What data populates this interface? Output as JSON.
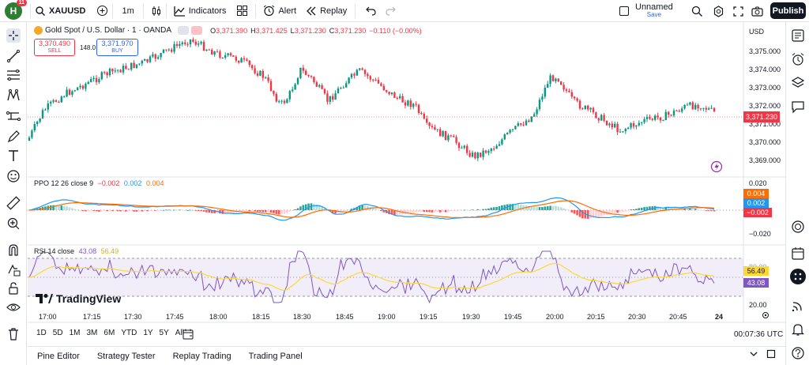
{
  "top": {
    "avatar_letter": "H",
    "badge": "11",
    "symbol": "XAUUSD",
    "interval": "1m",
    "indicators": "Indicators",
    "alert": "Alert",
    "replay": "Replay",
    "layout_name": "Unnamed",
    "layout_status": "Save",
    "publish": "Publish"
  },
  "legend": {
    "title": "Gold Spot / U.S. Dollar · 1 · OANDA",
    "o": "O",
    "o_val": "3,371.390",
    "h": "H",
    "h_val": "3,371.425",
    "l": "L",
    "l_val": "3,371.230",
    "c": "C",
    "c_val": "3,371.230",
    "chg": "−0.110 (−0.00%)"
  },
  "trade": {
    "sell_price": "3,370.490",
    "sell": "SELL",
    "spread": "148.0",
    "buy_price": "3,371.970",
    "buy": "BUY"
  },
  "ppo": {
    "name": "PPO",
    "params": "12 26 close 9",
    "v1": "−0.002",
    "v2": "0.002",
    "v3": "0.004"
  },
  "rsi": {
    "name": "RSI",
    "params": "14 close",
    "v1": "43.08",
    "v2": "56.49"
  },
  "price_axis": {
    "currency": "USD",
    "labels": [
      "3,375.000",
      "3,374.000",
      "3,373.000",
      "3,372.000",
      "3,371.000",
      "3,370.000",
      "3,369.000"
    ],
    "last": "3,371.230"
  },
  "ppo_axis": {
    "top": "0.020",
    "bottom": "−0.020",
    "badges": [
      "0.004",
      "0.002",
      "−0.002"
    ]
  },
  "rsi_axis": {
    "labels": [
      "80.00",
      "20.00"
    ],
    "badges": [
      "56.49",
      "43.08"
    ]
  },
  "time_axis": [
    "17:00",
    "17:15",
    "17:30",
    "17:45",
    "18:00",
    "18:15",
    "18:30",
    "18:45",
    "19:00",
    "19:15",
    "19:30",
    "19:45",
    "20:00",
    "20:15",
    "20:30",
    "20:45",
    "24"
  ],
  "timeframes": [
    "1D",
    "5D",
    "1M",
    "3M",
    "6M",
    "YTD",
    "1Y",
    "5Y",
    "All"
  ],
  "clock": "00:07:36 UTC",
  "watermark": "TradingView",
  "bottom_tabs": [
    "Pine Editor",
    "Strategy Tester",
    "Replay Trading",
    "Trading Panel"
  ],
  "colors": {
    "up": "#089981",
    "down": "#f23645",
    "blue": "#2962ff",
    "orange": "#ff6d00",
    "ppo_line": "#2196f3",
    "rsi": "#7e57c2",
    "rsi_ma": "#fdd835"
  }
}
